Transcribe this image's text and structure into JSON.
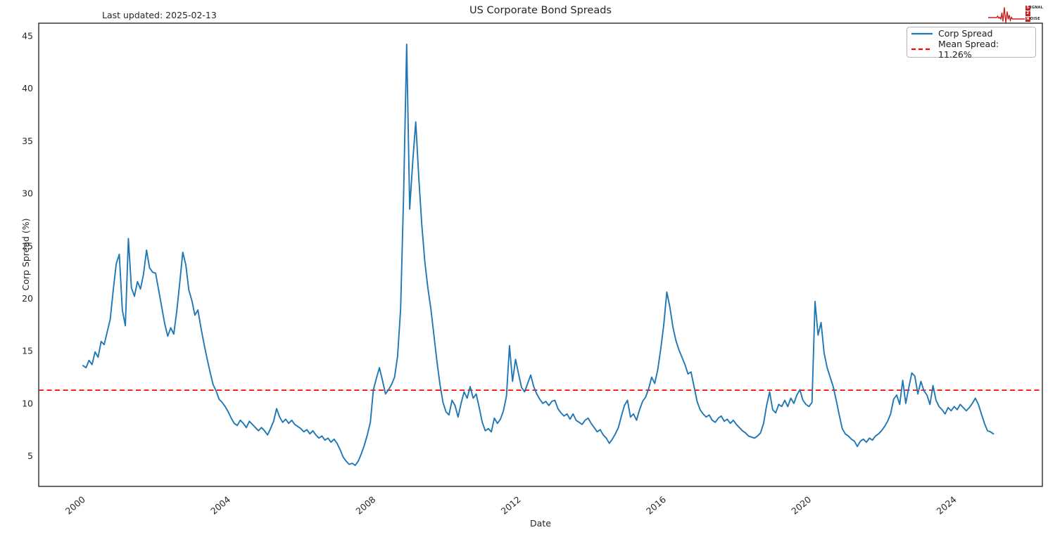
{
  "header": {
    "title": "US Corporate Bond Spreads",
    "last_updated": "Last updated: 2025-02-13"
  },
  "axis": {
    "xlabel": "Date",
    "ylabel": "Corp Spread (%)"
  },
  "logo": {
    "line1_boxed": "S",
    "line1_rest": "IGNAL",
    "line2_boxed": "2",
    "line3_boxed": "N",
    "line3_rest": "OISE",
    "accent_color": "#c62121"
  },
  "chart_data": {
    "type": "line",
    "title": "US Corporate Bond Spreads",
    "xlabel": "Date",
    "ylabel": "Corp Spread (%)",
    "xlim": [
      1998.78,
      2026.43
    ],
    "ylim": [
      2.1,
      46.2
    ],
    "xticks": [
      2000,
      2004,
      2008,
      2012,
      2016,
      2020,
      2024
    ],
    "yticks": [
      5,
      10,
      15,
      20,
      25,
      30,
      35,
      40,
      45
    ],
    "grid": false,
    "legend_position": "upper right",
    "legend": [
      "Corp Spread",
      "Mean Spread: 11.26%"
    ],
    "annotation": "Last updated: 2025-02-13",
    "mean_line": {
      "value": 11.26,
      "color": "#ff0000",
      "style": "dashed",
      "label": "Mean Spread: 11.26%"
    },
    "series": [
      {
        "name": "Corp Spread",
        "color": "#1f77b4",
        "x_unit": "decimal_year_monthly",
        "x_start": 2000.0,
        "x_step_years": 0.0833333,
        "values": [
          13.6,
          13.4,
          14.1,
          13.7,
          14.9,
          14.4,
          15.9,
          15.6,
          16.8,
          18.0,
          20.8,
          23.3,
          24.2,
          18.9,
          17.4,
          25.7,
          21.0,
          20.2,
          21.6,
          20.9,
          22.3,
          24.6,
          22.9,
          22.5,
          22.4,
          20.8,
          19.2,
          17.6,
          16.4,
          17.2,
          16.6,
          18.8,
          21.5,
          24.4,
          23.2,
          20.8,
          19.8,
          18.4,
          18.9,
          17.2,
          15.7,
          14.3,
          13.0,
          11.8,
          11.2,
          10.4,
          10.1,
          9.7,
          9.2,
          8.6,
          8.1,
          7.9,
          8.4,
          8.1,
          7.7,
          8.3,
          8.0,
          7.7,
          7.4,
          7.7,
          7.4,
          7.0,
          7.6,
          8.3,
          9.5,
          8.7,
          8.2,
          8.5,
          8.1,
          8.4,
          8.0,
          7.8,
          7.6,
          7.3,
          7.5,
          7.1,
          7.4,
          7.0,
          6.7,
          6.9,
          6.5,
          6.7,
          6.3,
          6.6,
          6.2,
          5.6,
          4.9,
          4.5,
          4.2,
          4.3,
          4.1,
          4.5,
          5.2,
          6.0,
          7.0,
          8.2,
          11.3,
          12.4,
          13.4,
          12.2,
          10.9,
          11.3,
          11.8,
          12.5,
          14.5,
          19.0,
          30.0,
          44.2,
          28.5,
          33.0,
          36.8,
          31.5,
          27.0,
          23.5,
          21.0,
          19.0,
          16.5,
          14.0,
          11.8,
          10.1,
          9.2,
          8.9,
          10.3,
          9.8,
          8.7,
          10.0,
          11.1,
          10.5,
          11.6,
          10.5,
          10.9,
          9.6,
          8.2,
          7.4,
          7.6,
          7.3,
          8.6,
          8.1,
          8.5,
          9.3,
          10.7,
          15.5,
          12.1,
          14.2,
          12.8,
          11.5,
          11.1,
          11.9,
          12.7,
          11.6,
          10.9,
          10.4,
          10.0,
          10.2,
          9.8,
          10.2,
          10.3,
          9.5,
          9.1,
          8.8,
          9.0,
          8.5,
          9.0,
          8.4,
          8.2,
          8.0,
          8.4,
          8.6,
          8.1,
          7.7,
          7.3,
          7.5,
          7.0,
          6.7,
          6.2,
          6.6,
          7.1,
          7.7,
          8.8,
          9.8,
          10.3,
          8.7,
          9.0,
          8.4,
          9.4,
          10.2,
          10.6,
          11.4,
          12.5,
          11.9,
          13.2,
          15.2,
          17.5,
          20.6,
          19.2,
          17.3,
          16.0,
          15.1,
          14.4,
          13.7,
          12.8,
          13.0,
          11.6,
          10.2,
          9.4,
          9.0,
          8.7,
          8.9,
          8.4,
          8.2,
          8.6,
          8.8,
          8.3,
          8.5,
          8.1,
          8.4,
          8.0,
          7.7,
          7.4,
          7.2,
          6.9,
          6.8,
          6.7,
          6.9,
          7.2,
          8.1,
          9.8,
          11.1,
          9.4,
          9.1,
          9.9,
          9.7,
          10.3,
          9.7,
          10.5,
          10.0,
          10.8,
          11.3,
          10.3,
          9.9,
          9.7,
          10.1,
          19.7,
          16.5,
          17.7,
          14.8,
          13.4,
          12.5,
          11.6,
          10.3,
          8.9,
          7.6,
          7.1,
          6.9,
          6.6,
          6.4,
          5.9,
          6.4,
          6.6,
          6.3,
          6.7,
          6.5,
          6.9,
          7.1,
          7.4,
          7.8,
          8.3,
          9.0,
          10.4,
          10.8,
          9.9,
          12.2,
          10.0,
          11.5,
          12.9,
          12.6,
          10.9,
          12.1,
          11.2,
          10.8,
          9.9,
          11.7,
          10.3,
          9.7,
          9.4,
          9.0,
          9.6,
          9.3,
          9.7,
          9.4,
          9.9,
          9.6,
          9.3,
          9.6,
          10.0,
          10.5,
          9.9,
          9.0,
          8.1,
          7.4,
          7.3,
          7.1
        ]
      }
    ]
  }
}
